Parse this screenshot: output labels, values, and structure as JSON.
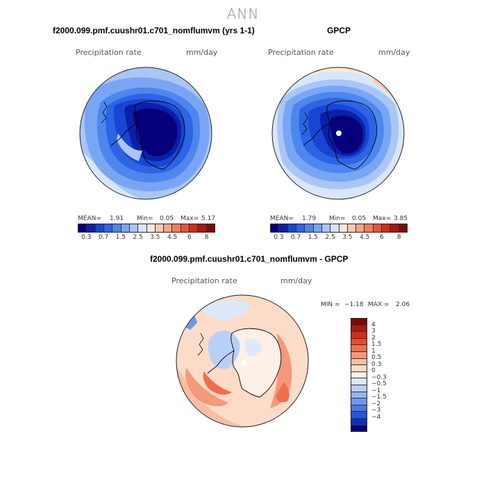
{
  "title": "ANN",
  "panels": {
    "model": {
      "title": "f2000.099.pmf.cuushr01.c701_nomflumvm (yrs 1-1)",
      "variable": "Precipitation rate",
      "units": "mm/day",
      "stats": {
        "mean_label": "MEAN=",
        "mean": "1.91",
        "min_label": "Min=",
        "min": "0.05",
        "max_label": "Max=",
        "max": "5.17"
      }
    },
    "obs": {
      "title": "GPCP",
      "variable": "Precipitation rate",
      "units": "mm/day",
      "stats": {
        "mean_label": "MEAN=",
        "mean": "1.79",
        "min_label": "Min=",
        "min": "0.05",
        "max_label": "Max=",
        "max": "3.85"
      }
    },
    "diff": {
      "title": "f2000.099.pmf.cuushr01.c701_nomflumvm - GPCP",
      "variable": "Precipitation rate",
      "units": "mm/day",
      "stats": {
        "min_label": "MIN =",
        "min": "−1.18",
        "max_label": "MAX =",
        "max": "2.06"
      }
    }
  },
  "colorbar_abs": {
    "colors": [
      "#07007a",
      "#0b1fa8",
      "#1846d4",
      "#2c64e4",
      "#4e86ef",
      "#79a6f4",
      "#a9c6f7",
      "#d7e6f8",
      "#fde8d8",
      "#f9c9ad",
      "#f6a587",
      "#f27d5e",
      "#e8523a",
      "#cf2d1c",
      "#ab1810",
      "#7d0a05"
    ],
    "ticks": [
      "0.3",
      "0.7",
      "1.5",
      "2.5",
      "3.5",
      "4.5",
      "6",
      "8"
    ]
  },
  "colorbar_diff": {
    "colors": [
      "#7d0a05",
      "#ab1810",
      "#cf2d1c",
      "#e84a30",
      "#f26d4d",
      "#f6987a",
      "#f9bea3",
      "#fcdcc8",
      "#fdf0e6",
      "#dce9f8",
      "#b8d0f5",
      "#93b5f1",
      "#6f98ec",
      "#4a78e6",
      "#2655dc",
      "#0b2fbd",
      "#07007a"
    ],
    "ticks": [
      "4",
      "3",
      "2",
      "1.5",
      "1",
      "0.5",
      "0.3",
      "0",
      "−0.3",
      "−0.5",
      "−1",
      "−1.5",
      "−2",
      "−3",
      "−4"
    ]
  }
}
